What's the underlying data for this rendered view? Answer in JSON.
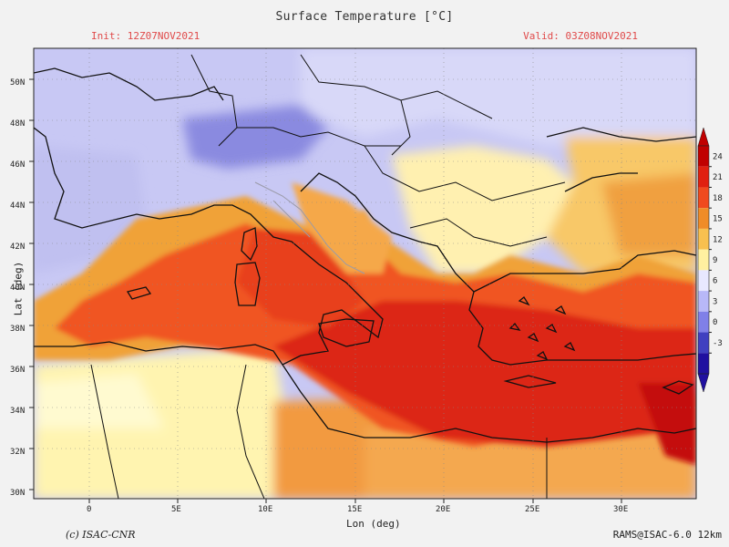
{
  "header": {
    "title": "Surface Temperature [°C]",
    "init": "Init: 12Z07NOV2021",
    "valid": "Valid: 03Z08NOV2021"
  },
  "axes": {
    "xlabel": "Lon (deg)",
    "ylabel": "Lat (deg)",
    "x_ticks": [
      "0",
      "5E",
      "10E",
      "15E",
      "20E",
      "25E",
      "30E"
    ],
    "y_ticks": [
      "30N",
      "32N",
      "34N",
      "36N",
      "38N",
      "40N",
      "42N",
      "44N",
      "46N",
      "48N",
      "50N"
    ]
  },
  "colorbar": {
    "ticks": [
      "24",
      "21",
      "18",
      "15",
      "12",
      "9",
      "6",
      "3",
      "0",
      "-3"
    ],
    "colors": [
      "#c00000",
      "#e02010",
      "#f04a1e",
      "#f08c28",
      "#f8c050",
      "#fff0a0",
      "#e8e8ff",
      "#b8b8f8",
      "#8080e8",
      "#4040c0",
      "#2010a0"
    ]
  },
  "footer": {
    "left": "(c) ISAC-CNR",
    "right": "RAMS@ISAC-6.0 12km"
  },
  "palette": {
    "background": "#f2f2f2",
    "header_red": "#e04a4a",
    "coast": "#000000",
    "border": "#000000"
  }
}
